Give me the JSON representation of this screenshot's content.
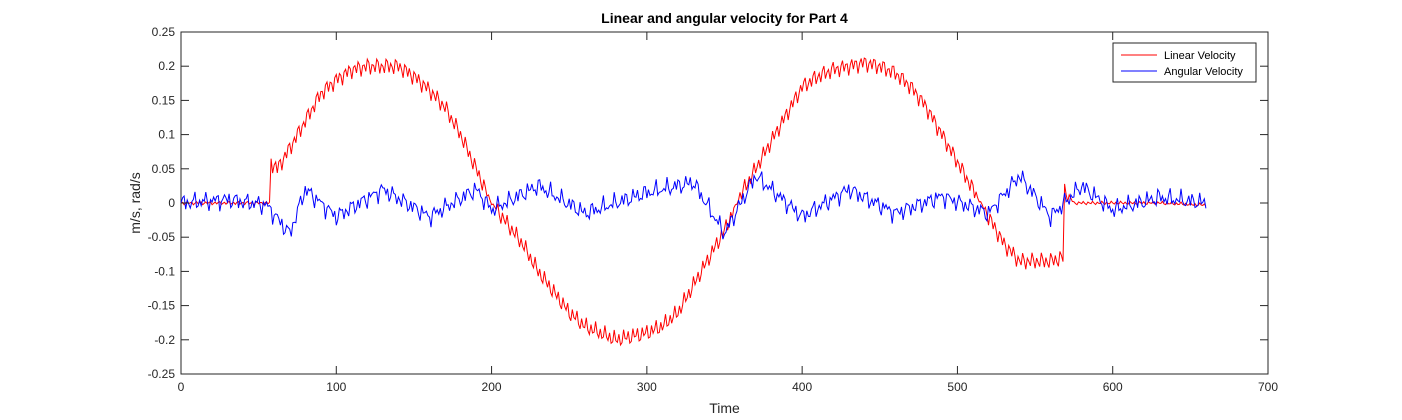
{
  "chart_data": {
    "type": "line",
    "title": "Linear and angular velocity for Part 4",
    "xlabel": "Time",
    "ylabel": "m/s, rad/s",
    "xlim": [
      0,
      700
    ],
    "ylim": [
      -0.25,
      0.25
    ],
    "xticks": [
      0,
      100,
      200,
      300,
      400,
      500,
      600,
      700
    ],
    "xtick_labels": [
      "0",
      "100",
      "200",
      "300",
      "400",
      "500",
      "600",
      "700"
    ],
    "yticks": [
      -0.25,
      -0.2,
      -0.15,
      -0.1,
      -0.05,
      0,
      0.05,
      0.1,
      0.15,
      0.2,
      0.25
    ],
    "ytick_labels": [
      "-0.25",
      "-0.2",
      "-0.15",
      "-0.1",
      "-0.05",
      "0",
      "0.05",
      "0.1",
      "0.15",
      "0.2",
      "0.25"
    ],
    "grid": false,
    "legend_position": "top-right",
    "series": [
      {
        "name": "Linear Velocity",
        "color": "#ff0000",
        "x": [
          0,
          20,
          40,
          57,
          58,
          62,
          70,
          80,
          90,
          100,
          110,
          120,
          130,
          140,
          150,
          160,
          170,
          180,
          190,
          200,
          210,
          220,
          230,
          240,
          250,
          260,
          270,
          280,
          290,
          300,
          310,
          320,
          330,
          340,
          350,
          360,
          370,
          380,
          390,
          400,
          410,
          420,
          430,
          440,
          450,
          460,
          470,
          480,
          490,
          500,
          510,
          520,
          530,
          540,
          550,
          560,
          568,
          569,
          575,
          600,
          630,
          660
        ],
        "y": [
          0,
          0,
          0,
          0,
          0.06,
          0.05,
          0.08,
          0.12,
          0.16,
          0.18,
          0.195,
          0.2,
          0.2,
          0.2,
          0.185,
          0.165,
          0.14,
          0.1,
          0.05,
          0.0,
          -0.03,
          -0.06,
          -0.1,
          -0.13,
          -0.16,
          -0.18,
          -0.19,
          -0.2,
          -0.195,
          -0.19,
          -0.18,
          -0.16,
          -0.12,
          -0.08,
          -0.04,
          0.01,
          0.05,
          0.09,
          0.13,
          0.17,
          0.185,
          0.195,
          0.2,
          0.205,
          0.2,
          0.19,
          0.17,
          0.14,
          0.1,
          0.06,
          0.02,
          -0.02,
          -0.06,
          -0.085,
          -0.085,
          -0.085,
          -0.08,
          0.02,
          0.0,
          0.0,
          0.0,
          -0.003
        ]
      },
      {
        "name": "Angular Velocity",
        "color": "#0000ff",
        "x": [
          0,
          30,
          55,
          70,
          80,
          100,
          130,
          160,
          190,
          200,
          230,
          260,
          300,
          330,
          350,
          370,
          400,
          430,
          460,
          490,
          520,
          540,
          560,
          580,
          600,
          630,
          660
        ],
        "y": [
          0,
          0.005,
          -0.003,
          -0.045,
          0.02,
          -0.02,
          0.02,
          -0.02,
          0.02,
          -0.01,
          0.025,
          -0.015,
          0.015,
          0.03,
          -0.045,
          0.04,
          -0.02,
          0.02,
          -0.015,
          0.01,
          -0.015,
          0.04,
          -0.02,
          0.025,
          -0.01,
          0.008,
          0.0
        ]
      }
    ]
  }
}
